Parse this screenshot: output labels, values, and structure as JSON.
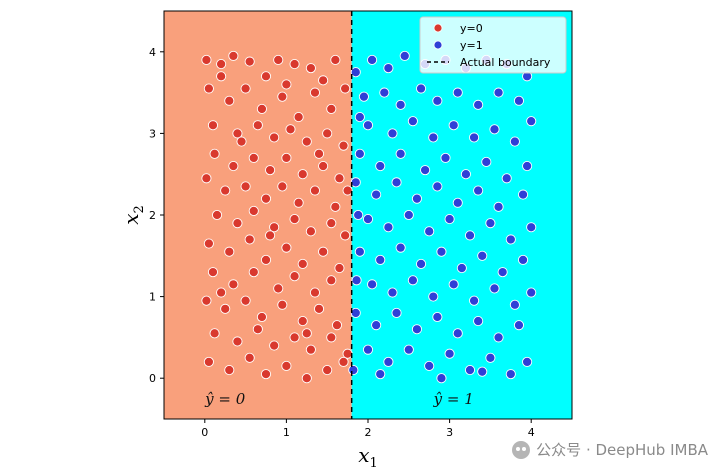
{
  "chart_data": {
    "type": "scatter",
    "xlabel": "x",
    "xlabel_sub": "1",
    "ylabel": "x",
    "ylabel_sub": "2",
    "xlim": [
      -0.5,
      4.5
    ],
    "ylim": [
      -0.5,
      4.5
    ],
    "x_ticks": [
      0,
      1,
      2,
      3,
      4
    ],
    "y_ticks": [
      0,
      1,
      2,
      3,
      4
    ],
    "boundary_x": 1.8,
    "grid": false,
    "legend_position": "top-right",
    "legend": [
      {
        "label": "y=0",
        "marker": "dot",
        "color": "#d9392e"
      },
      {
        "label": "y=1",
        "marker": "dot",
        "color": "#2f3fd6"
      },
      {
        "label": "Actual boundary",
        "marker": "dashed-line",
        "color": "#000000"
      }
    ],
    "regions": [
      {
        "label": "ŷ = 0",
        "color": "#f9a07c",
        "from": -0.5,
        "to": 1.8
      },
      {
        "label": "ŷ = 1",
        "color": "#00ffff",
        "from": 1.8,
        "to": 4.5
      }
    ],
    "series": [
      {
        "name": "y=0",
        "color": "#d9392e",
        "points": [
          [
            0.02,
            3.9
          ],
          [
            0.2,
            3.85
          ],
          [
            0.35,
            3.95
          ],
          [
            0.55,
            3.88
          ],
          [
            0.75,
            3.7
          ],
          [
            0.9,
            3.9
          ],
          [
            1.1,
            3.85
          ],
          [
            1.3,
            3.8
          ],
          [
            1.45,
            3.65
          ],
          [
            1.6,
            3.9
          ],
          [
            0.05,
            3.55
          ],
          [
            0.3,
            3.4
          ],
          [
            0.5,
            3.55
          ],
          [
            0.7,
            3.3
          ],
          [
            0.95,
            3.45
          ],
          [
            1.15,
            3.2
          ],
          [
            1.35,
            3.5
          ],
          [
            1.55,
            3.3
          ],
          [
            1.72,
            3.55
          ],
          [
            0.1,
            3.1
          ],
          [
            0.4,
            3.0
          ],
          [
            0.65,
            3.1
          ],
          [
            0.85,
            2.95
          ],
          [
            1.05,
            3.05
          ],
          [
            1.25,
            2.9
          ],
          [
            1.5,
            3.0
          ],
          [
            1.7,
            2.85
          ],
          [
            0.12,
            2.75
          ],
          [
            0.35,
            2.6
          ],
          [
            0.6,
            2.7
          ],
          [
            0.8,
            2.55
          ],
          [
            1.0,
            2.7
          ],
          [
            1.2,
            2.5
          ],
          [
            1.45,
            2.6
          ],
          [
            1.65,
            2.45
          ],
          [
            0.02,
            2.45
          ],
          [
            0.25,
            2.3
          ],
          [
            0.5,
            2.35
          ],
          [
            0.75,
            2.2
          ],
          [
            0.95,
            2.35
          ],
          [
            1.15,
            2.15
          ],
          [
            1.35,
            2.3
          ],
          [
            1.6,
            2.1
          ],
          [
            1.75,
            2.3
          ],
          [
            0.15,
            2.0
          ],
          [
            0.4,
            1.9
          ],
          [
            0.6,
            2.05
          ],
          [
            0.85,
            1.85
          ],
          [
            1.1,
            1.95
          ],
          [
            1.3,
            1.8
          ],
          [
            1.55,
            1.9
          ],
          [
            1.72,
            1.75
          ],
          [
            0.05,
            1.65
          ],
          [
            0.3,
            1.55
          ],
          [
            0.55,
            1.7
          ],
          [
            0.75,
            1.45
          ],
          [
            1.0,
            1.6
          ],
          [
            1.2,
            1.4
          ],
          [
            1.45,
            1.55
          ],
          [
            1.65,
            1.35
          ],
          [
            0.1,
            1.3
          ],
          [
            0.35,
            1.15
          ],
          [
            0.6,
            1.3
          ],
          [
            0.9,
            1.1
          ],
          [
            1.1,
            1.25
          ],
          [
            1.35,
            1.05
          ],
          [
            1.55,
            1.2
          ],
          [
            0.02,
            0.95
          ],
          [
            0.25,
            0.85
          ],
          [
            0.5,
            0.95
          ],
          [
            0.7,
            0.75
          ],
          [
            0.95,
            0.9
          ],
          [
            1.2,
            0.7
          ],
          [
            1.4,
            0.85
          ],
          [
            1.62,
            0.65
          ],
          [
            0.12,
            0.55
          ],
          [
            0.4,
            0.45
          ],
          [
            0.65,
            0.6
          ],
          [
            0.85,
            0.4
          ],
          [
            1.1,
            0.5
          ],
          [
            1.3,
            0.35
          ],
          [
            1.55,
            0.5
          ],
          [
            1.75,
            0.3
          ],
          [
            0.05,
            0.2
          ],
          [
            0.3,
            0.1
          ],
          [
            0.55,
            0.25
          ],
          [
            0.75,
            0.05
          ],
          [
            1.0,
            0.15
          ],
          [
            1.25,
            0.0
          ],
          [
            1.5,
            0.1
          ],
          [
            1.7,
            0.2
          ],
          [
            0.2,
            3.7
          ],
          [
            1.0,
            3.6
          ],
          [
            0.45,
            2.9
          ],
          [
            1.4,
            2.75
          ],
          [
            0.2,
            1.05
          ],
          [
            0.8,
            1.75
          ],
          [
            1.25,
            0.55
          ]
        ]
      },
      {
        "name": "y=1",
        "color": "#2f3fd6",
        "points": [
          [
            1.85,
            3.75
          ],
          [
            2.05,
            3.9
          ],
          [
            2.25,
            3.8
          ],
          [
            2.45,
            3.95
          ],
          [
            2.7,
            3.85
          ],
          [
            2.95,
            3.9
          ],
          [
            3.2,
            3.8
          ],
          [
            3.45,
            3.9
          ],
          [
            3.7,
            3.85
          ],
          [
            3.95,
            3.7
          ],
          [
            1.95,
            3.45
          ],
          [
            2.2,
            3.5
          ],
          [
            2.4,
            3.35
          ],
          [
            2.65,
            3.55
          ],
          [
            2.85,
            3.4
          ],
          [
            3.1,
            3.5
          ],
          [
            3.35,
            3.35
          ],
          [
            3.6,
            3.5
          ],
          [
            3.85,
            3.4
          ],
          [
            2.0,
            3.1
          ],
          [
            2.3,
            3.0
          ],
          [
            2.55,
            3.15
          ],
          [
            2.8,
            2.95
          ],
          [
            3.05,
            3.1
          ],
          [
            3.3,
            2.95
          ],
          [
            3.55,
            3.05
          ],
          [
            3.8,
            2.9
          ],
          [
            4.0,
            3.15
          ],
          [
            1.9,
            2.75
          ],
          [
            2.15,
            2.6
          ],
          [
            2.4,
            2.75
          ],
          [
            2.7,
            2.55
          ],
          [
            2.95,
            2.7
          ],
          [
            3.2,
            2.5
          ],
          [
            3.45,
            2.65
          ],
          [
            3.7,
            2.45
          ],
          [
            3.95,
            2.6
          ],
          [
            1.85,
            2.4
          ],
          [
            2.1,
            2.25
          ],
          [
            2.35,
            2.4
          ],
          [
            2.6,
            2.2
          ],
          [
            2.85,
            2.35
          ],
          [
            3.1,
            2.15
          ],
          [
            3.35,
            2.3
          ],
          [
            3.6,
            2.1
          ],
          [
            3.9,
            2.25
          ],
          [
            2.0,
            1.95
          ],
          [
            2.25,
            1.85
          ],
          [
            2.5,
            2.0
          ],
          [
            2.75,
            1.8
          ],
          [
            3.0,
            1.95
          ],
          [
            3.25,
            1.75
          ],
          [
            3.5,
            1.9
          ],
          [
            3.75,
            1.7
          ],
          [
            4.0,
            1.85
          ],
          [
            1.9,
            1.55
          ],
          [
            2.15,
            1.45
          ],
          [
            2.4,
            1.6
          ],
          [
            2.65,
            1.4
          ],
          [
            2.9,
            1.55
          ],
          [
            3.15,
            1.35
          ],
          [
            3.4,
            1.5
          ],
          [
            3.65,
            1.3
          ],
          [
            3.9,
            1.45
          ],
          [
            2.05,
            1.15
          ],
          [
            2.3,
            1.05
          ],
          [
            2.55,
            1.2
          ],
          [
            2.8,
            1.0
          ],
          [
            3.05,
            1.15
          ],
          [
            3.3,
            0.95
          ],
          [
            3.55,
            1.1
          ],
          [
            3.8,
            0.9
          ],
          [
            4.0,
            1.05
          ],
          [
            1.85,
            0.8
          ],
          [
            2.1,
            0.65
          ],
          [
            2.35,
            0.8
          ],
          [
            2.6,
            0.6
          ],
          [
            2.85,
            0.75
          ],
          [
            3.1,
            0.55
          ],
          [
            3.35,
            0.7
          ],
          [
            3.6,
            0.5
          ],
          [
            3.85,
            0.65
          ],
          [
            2.0,
            0.35
          ],
          [
            2.25,
            0.2
          ],
          [
            2.5,
            0.35
          ],
          [
            2.75,
            0.15
          ],
          [
            3.0,
            0.3
          ],
          [
            3.25,
            0.1
          ],
          [
            3.5,
            0.25
          ],
          [
            3.75,
            0.05
          ],
          [
            3.95,
            0.2
          ],
          [
            1.82,
            0.1
          ],
          [
            2.15,
            0.05
          ],
          [
            2.9,
            0.0
          ],
          [
            3.4,
            0.08
          ],
          [
            1.88,
            2.0
          ],
          [
            1.86,
            1.2
          ],
          [
            1.9,
            3.2
          ]
        ]
      }
    ]
  },
  "watermark": {
    "text": "公众号 · DeepHub IMBA",
    "icon": "wechat-icon"
  }
}
